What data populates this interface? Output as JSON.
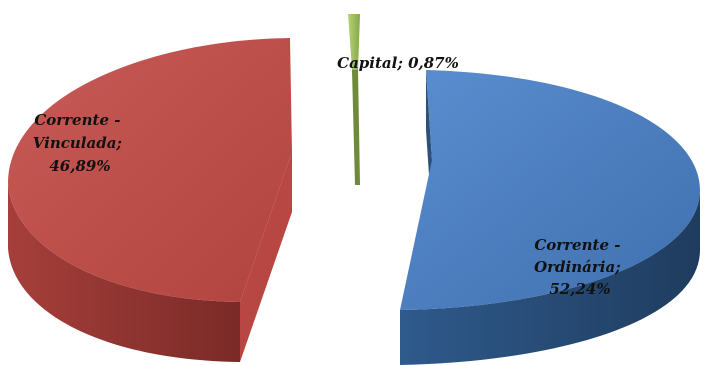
{
  "chart_data": {
    "type": "pie",
    "style": "3d-exploded",
    "slices": [
      {
        "name": "Corrente - Ordinária",
        "value": 52.24,
        "label": [
          "Corrente -",
          "Ordinária;",
          "52,24%"
        ],
        "color": "#4f81bd",
        "side_color": "#2a4a70"
      },
      {
        "name": "Corrente - Vinculada",
        "value": 46.89,
        "label": [
          "Corrente -",
          "Vinculada;",
          "46,89%"
        ],
        "color": "#c0504d",
        "side_color": "#8a302d"
      },
      {
        "name": "Capital",
        "value": 0.87,
        "label": [
          "Capital; 0,87%"
        ],
        "color": "#9bbb59",
        "side_color": "#6f8a3a"
      }
    ]
  }
}
